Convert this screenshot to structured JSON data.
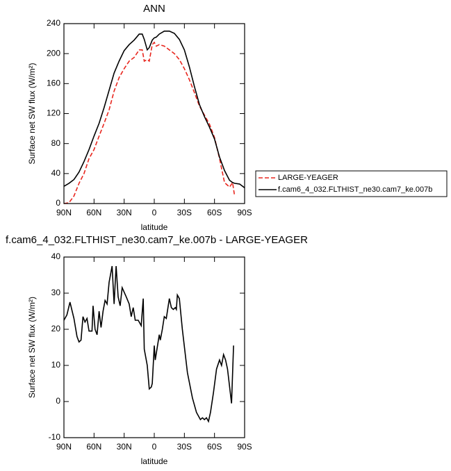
{
  "chart_data": [
    {
      "type": "line",
      "title": "ANN",
      "xlabel": "latitude",
      "ylabel": "Surface net SW flux (W/m²)",
      "x": [
        90,
        85,
        80,
        75,
        70,
        65,
        60,
        55,
        50,
        45,
        40,
        35,
        30,
        25,
        20,
        15,
        12,
        10,
        7,
        5,
        2,
        0,
        -2,
        -5,
        -10,
        -15,
        -20,
        -25,
        -30,
        -35,
        -40,
        -45,
        -50,
        -55,
        -60,
        -65,
        -70,
        -75,
        -78,
        -80,
        -85,
        -90
      ],
      "series": [
        {
          "name": "LARGE-YEAGER",
          "color": "#e8261e",
          "dash": true,
          "values": [
            0,
            1,
            10,
            27,
            40,
            60,
            72,
            90,
            107,
            125,
            150,
            168,
            180,
            190,
            195,
            205,
            205,
            190,
            192,
            190,
            212,
            215,
            210,
            212,
            210,
            205,
            200,
            192,
            180,
            165,
            148,
            130,
            118,
            106,
            88,
            60,
            28,
            22,
            28,
            10,
            null,
            null
          ]
        },
        {
          "name": "f.cam6_4_032.FLTHIST_ne30.cam7_ke.007b",
          "color": "#000000",
          "dash": false,
          "values": [
            23,
            27,
            32,
            42,
            56,
            72,
            90,
            107,
            128,
            151,
            174,
            190,
            204,
            212,
            218,
            226,
            226,
            219,
            205,
            208,
            218,
            221,
            222,
            226,
            230,
            230,
            227,
            219,
            205,
            182,
            156,
            132,
            116,
            102,
            86,
            62,
            44,
            31,
            28,
            27,
            26,
            21
          ]
        }
      ],
      "xlim": [
        90,
        -90
      ],
      "ylim": [
        0,
        240
      ],
      "xticks": [
        {
          "value": 90,
          "label": "90N"
        },
        {
          "value": 60,
          "label": "60N"
        },
        {
          "value": 30,
          "label": "30N"
        },
        0,
        {
          "value": -30,
          "label": "30S"
        },
        {
          "value": -60,
          "label": "60S"
        },
        {
          "value": -90,
          "label": "90S"
        }
      ],
      "yticks": [
        0,
        40,
        80,
        120,
        160,
        200,
        240
      ]
    },
    {
      "type": "line",
      "title": "f.cam6_4_032.FLTHIST_ne30.cam7_ke.007b - LARGE-YEAGER",
      "xlabel": "latitude",
      "ylabel": "Surface net SW flux (W/m²)",
      "x": [
        90,
        87,
        84,
        80,
        77,
        75,
        73,
        71,
        69,
        67,
        65,
        62,
        61,
        59,
        57,
        55,
        53,
        51,
        49,
        47,
        45,
        42,
        40,
        38,
        36,
        34,
        32,
        28,
        25,
        23,
        21,
        19,
        16,
        13,
        11,
        10,
        7,
        5,
        3,
        2,
        0,
        -1,
        -3,
        -5,
        -6,
        -8,
        -10,
        -12,
        -15,
        -17,
        -19,
        -21,
        -22,
        -23,
        -25,
        -28,
        -33,
        -38,
        -42,
        -46,
        -48,
        -50,
        -52,
        -54,
        -56,
        -59,
        -62,
        -65,
        -67,
        -69,
        -71,
        -73,
        -77,
        -79
      ],
      "values": [
        22.5,
        24,
        27.5,
        23,
        18,
        16.5,
        17,
        23.5,
        22,
        23,
        19.5,
        19.5,
        26.5,
        20,
        18.5,
        25,
        20.5,
        25,
        28,
        27,
        33,
        37.5,
        27,
        37.5,
        29,
        26.5,
        31.5,
        29,
        27,
        23.5,
        26,
        22.5,
        22.5,
        21,
        28.5,
        14.5,
        10,
        3.5,
        4,
        5,
        15.5,
        11.5,
        15,
        18.5,
        17,
        20,
        23.5,
        23,
        28.5,
        26,
        25.5,
        26,
        25.5,
        29.5,
        28.5,
        20,
        8,
        1,
        -3,
        -5,
        -4.5,
        -5,
        -4.5,
        -5.5,
        -3,
        2.5,
        9,
        11.5,
        10,
        13,
        11.5,
        9,
        -0.5,
        15.5
      ],
      "color": "#000000",
      "xlim": [
        90,
        -90
      ],
      "ylim": [
        -10,
        40
      ],
      "xticks": [
        {
          "value": 90,
          "label": "90N"
        },
        {
          "value": 60,
          "label": "60N"
        },
        {
          "value": 30,
          "label": "30N"
        },
        0,
        {
          "value": -30,
          "label": "30S"
        },
        {
          "value": -60,
          "label": "60S"
        },
        {
          "value": -90,
          "label": "90S"
        }
      ],
      "yticks": [
        -10,
        0,
        10,
        20,
        30,
        40
      ]
    }
  ]
}
